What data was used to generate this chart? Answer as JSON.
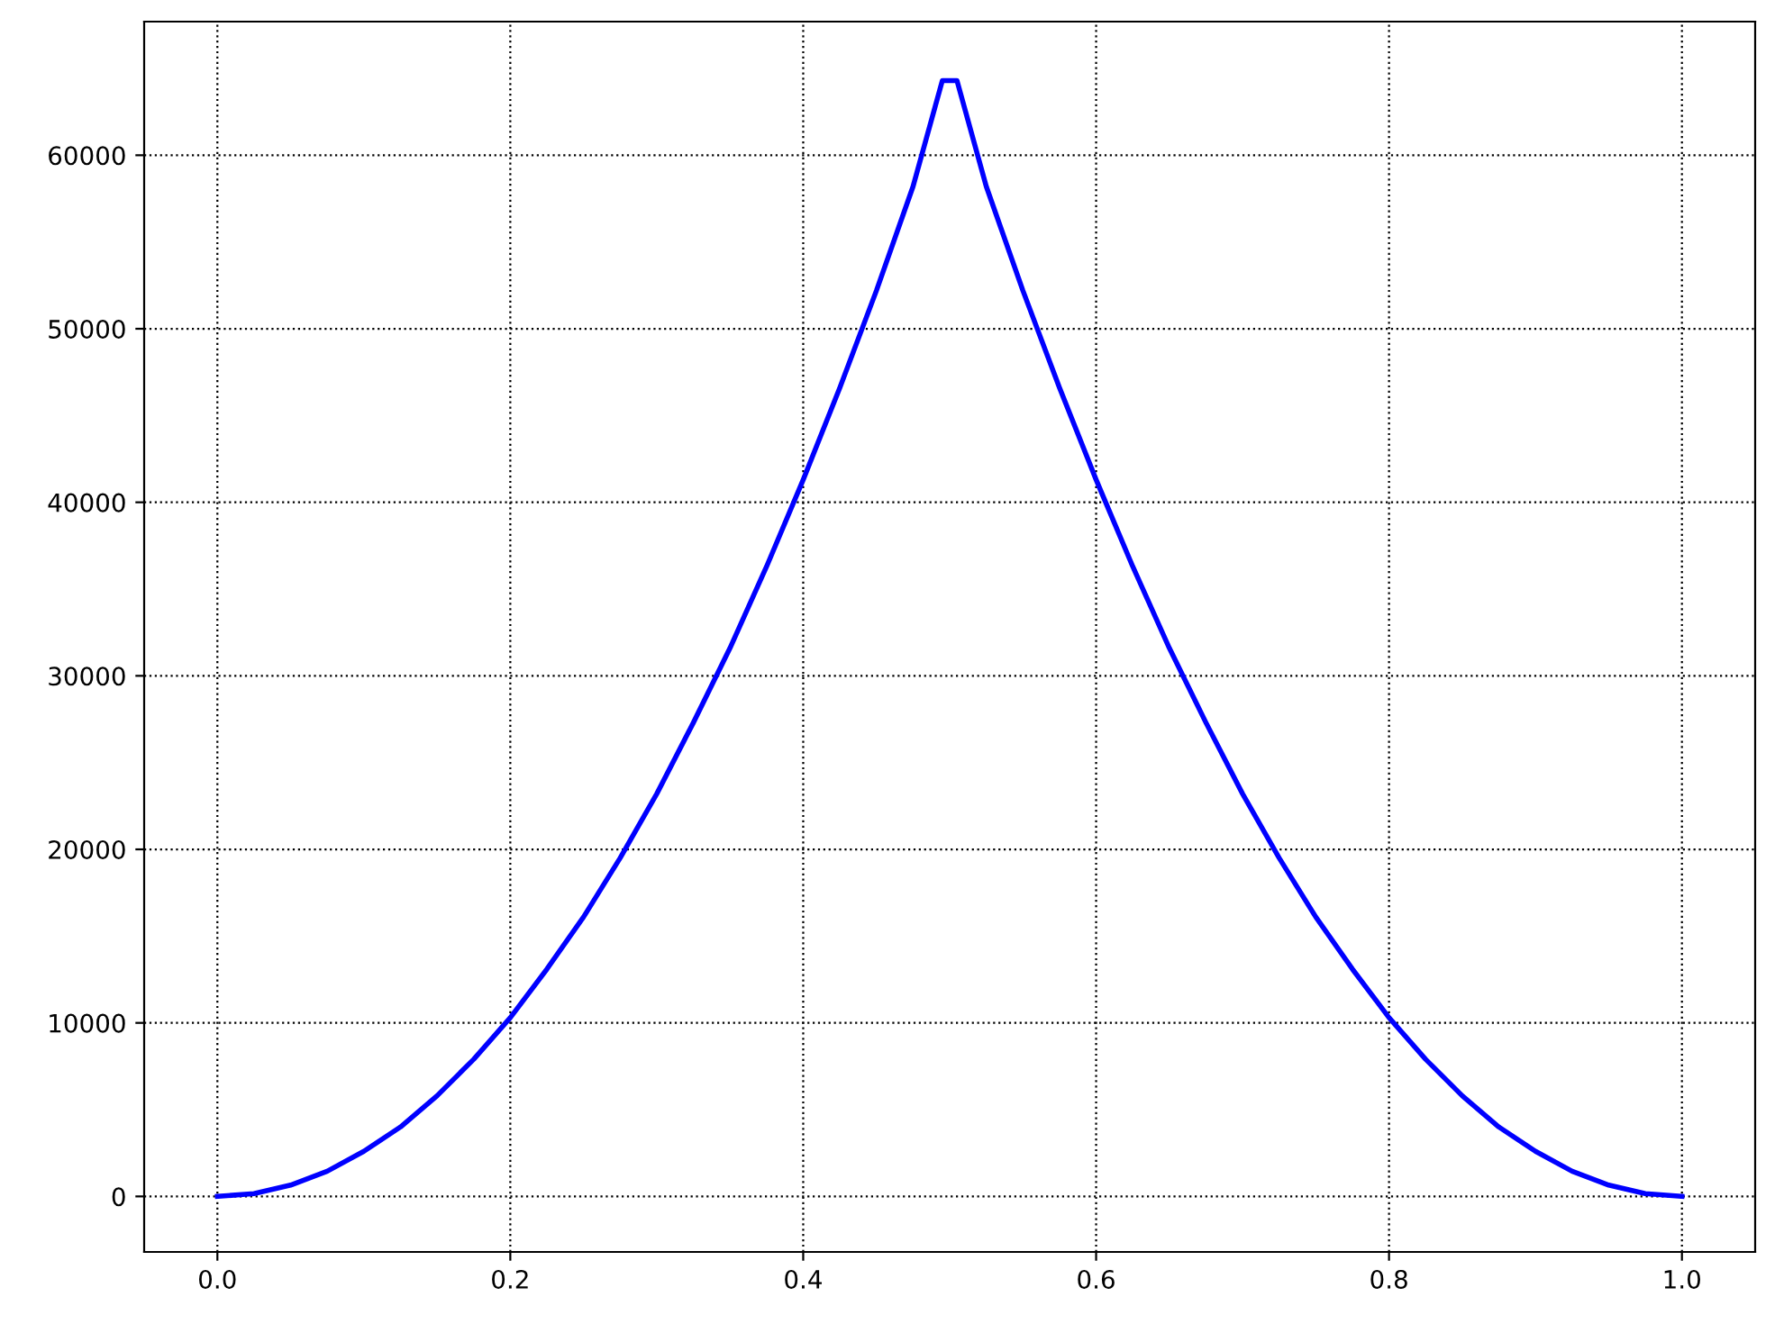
{
  "chart_data": {
    "type": "line",
    "x": [
      0,
      0.025,
      0.05,
      0.075,
      0.1,
      0.125,
      0.15,
      0.175,
      0.2,
      0.225,
      0.25,
      0.275,
      0.3,
      0.325,
      0.35,
      0.375,
      0.4,
      0.425,
      0.45,
      0.475,
      0.495,
      0.505,
      0.525,
      0.55,
      0.575,
      0.6,
      0.625,
      0.65,
      0.675,
      0.7,
      0.725,
      0.75,
      0.775,
      0.8,
      0.825,
      0.85,
      0.875,
      0.9,
      0.925,
      0.95,
      0.975,
      1.0
    ],
    "series": [
      {
        "color": "#0000ff",
        "values": [
          0,
          160,
          650,
          1450,
          2600,
          4000,
          5800,
          7900,
          10300,
          13100,
          16100,
          19500,
          23200,
          27300,
          31600,
          36300,
          41300,
          46600,
          52200,
          58200,
          64300,
          64300,
          58200,
          52200,
          46600,
          41300,
          36300,
          31600,
          27300,
          23200,
          19500,
          16100,
          13100,
          10300,
          7900,
          5800,
          4000,
          2600,
          1450,
          650,
          160,
          0
        ]
      }
    ],
    "xlim": [
      -0.05,
      1.05
    ],
    "ylim": [
      -3200,
      67700
    ],
    "xticks": [
      {
        "value": 0,
        "label": "0.0"
      },
      0.2,
      0.4,
      0.6,
      0.8,
      {
        "value": 1,
        "label": "1.0"
      }
    ],
    "yticks": [
      0,
      10000,
      20000,
      30000,
      40000,
      50000,
      60000
    ],
    "grid": true,
    "line_style": "solid"
  }
}
